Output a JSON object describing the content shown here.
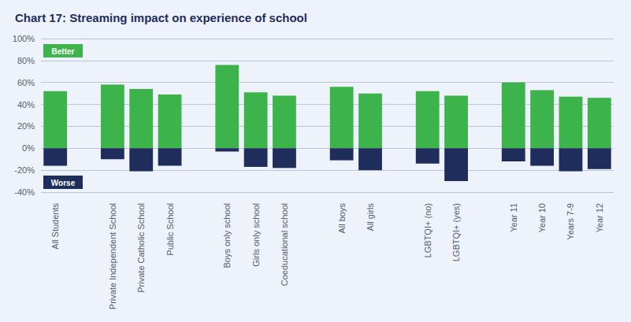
{
  "chart_data": {
    "type": "bar",
    "title": "Chart 17: Streaming impact on experience of school",
    "categories": [
      "All Students",
      null,
      "Private Independent School",
      "Private Catholic School",
      "Public School",
      null,
      "Boys only school",
      "Girls only school",
      "Coeducational school",
      null,
      "All boys",
      "All girls",
      null,
      "LGBTQI+ (no)",
      "LGBTQI+ (yes)",
      null,
      "Year 11",
      "Year 10",
      "Years 7-9",
      "Year 12"
    ],
    "series": [
      {
        "name": "Better",
        "color": "#3cb44b",
        "values": [
          52,
          null,
          58,
          54,
          49,
          null,
          76,
          51,
          48,
          null,
          56,
          50,
          null,
          52,
          48,
          null,
          60,
          53,
          47,
          46
        ]
      },
      {
        "name": "Worse",
        "color": "#1f2d5c",
        "values": [
          -16,
          null,
          -10,
          -21,
          -16,
          null,
          -3,
          -17,
          -18,
          null,
          -11,
          -20,
          null,
          -14,
          -30,
          null,
          -12,
          -16,
          -21,
          -19
        ]
      }
    ],
    "ylim": [
      -40,
      100
    ],
    "yticks": [
      {
        "value": -40,
        "label": "-40%"
      },
      {
        "value": -20,
        "label": "-20%"
      },
      {
        "value": 0,
        "label": "0%"
      },
      {
        "value": 20,
        "label": "20%"
      },
      {
        "value": 40,
        "label": "40%"
      },
      {
        "value": 60,
        "label": "60%"
      },
      {
        "value": 80,
        "label": "80%"
      },
      {
        "value": 100,
        "label": "100%"
      }
    ],
    "grid": true,
    "stacked": true,
    "legend": "left"
  }
}
